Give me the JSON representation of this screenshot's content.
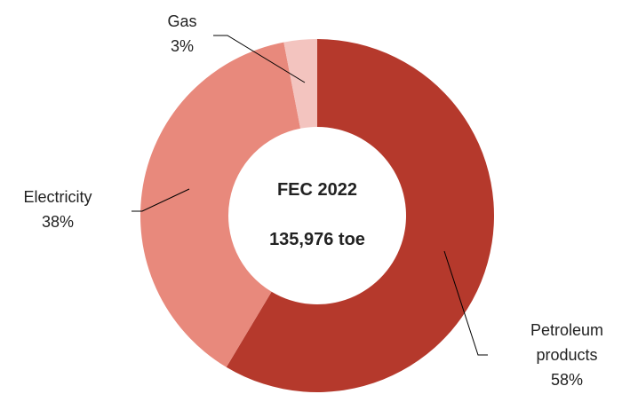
{
  "chart_data": {
    "type": "donut",
    "categories": [
      "Petroleum products",
      "Electricity",
      "Gas"
    ],
    "values": [
      58,
      38,
      3
    ],
    "value_labels": [
      "58%",
      "38%",
      "3%"
    ],
    "colors": [
      "#b5392c",
      "#e8897c",
      "#f3c4bf"
    ],
    "annotations": [
      "FEC 2022",
      "135,976 toe"
    ]
  }
}
